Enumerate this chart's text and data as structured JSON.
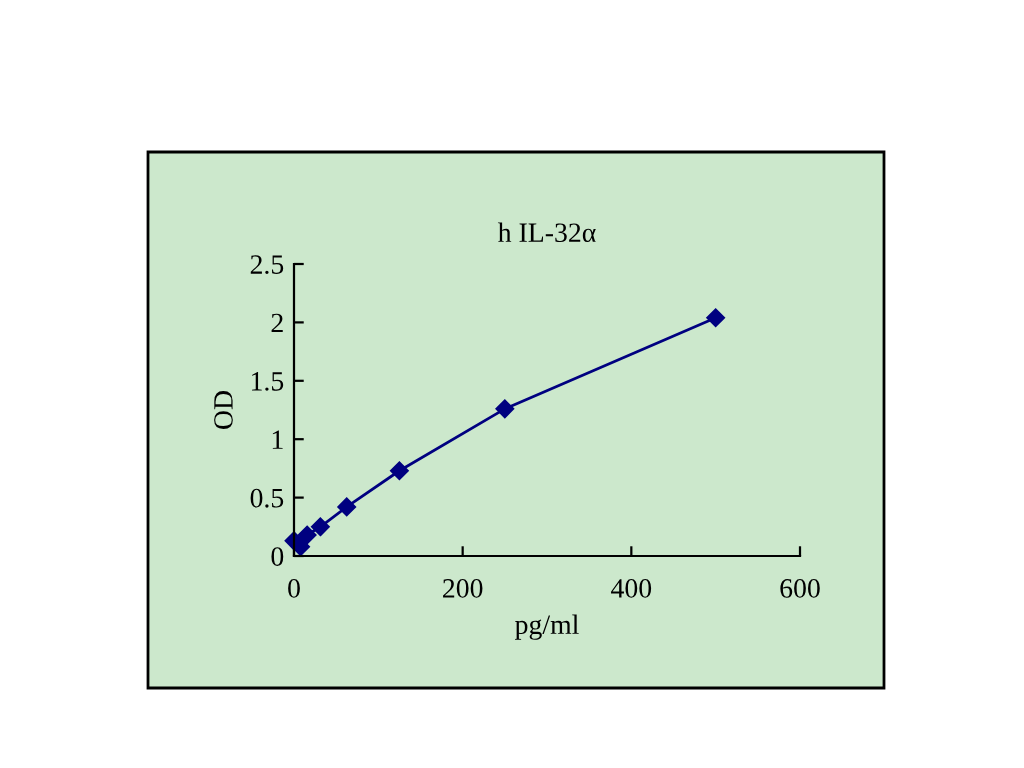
{
  "chart_data": {
    "type": "line",
    "title": "h IL-32α",
    "xlabel": "pg/ml",
    "ylabel": "OD",
    "x": [
      0,
      7.8,
      15.6,
      31.25,
      62.5,
      125,
      250,
      500
    ],
    "series": [
      {
        "color": "#000080",
        "values": [
          0.13,
          0.08,
          0.18,
          0.25,
          0.42,
          0.73,
          1.26,
          2.04
        ]
      }
    ],
    "xlim": [
      0,
      600
    ],
    "xticks": [
      0,
      200,
      400,
      600
    ],
    "ylim": [
      0,
      2.5
    ],
    "yticks": [
      0,
      0.5,
      1,
      1.5,
      2,
      2.5
    ],
    "marker": "diamond",
    "line_style": "solid",
    "grid": false,
    "legend": false
  }
}
